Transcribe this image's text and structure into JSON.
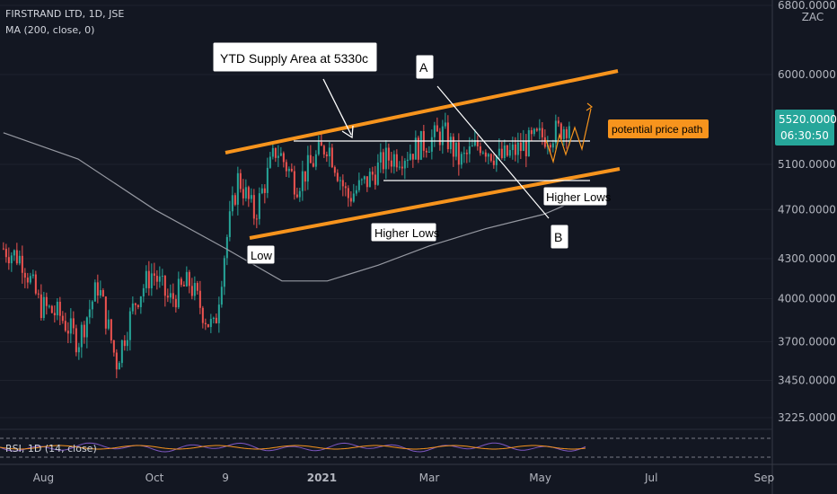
{
  "header": {
    "symbol_line": "FIRSTRAND LTD, 1D, JSE",
    "ma_line": "MA (200, close, 0)",
    "currency": "ZAC"
  },
  "price_tag": {
    "price": "5520.0000",
    "countdown": "06:30:50"
  },
  "annotations": {
    "supply_label": "YTD Supply Area at 5330c",
    "point_a": "A",
    "point_b": "B",
    "low": "Low",
    "higher_lows_1": "Higher Lows",
    "higher_lows_2": "Higher Lows",
    "path_label": "potential price path"
  },
  "rsi": {
    "label": "RSI, 1D (14, close)"
  },
  "colors": {
    "background": "#131722",
    "up": "#26a69a",
    "down": "#ef5350",
    "channel": "#f7941d",
    "ma": "#9598a1",
    "price_tag": "#26a69a",
    "path_label_bg": "#f7941d"
  },
  "chart_data": {
    "type": "candlestick",
    "title": "FIRSTRAND LTD, 1D, JSE",
    "y_ticks": [
      "6800.0000",
      "6000.0000",
      "5100.0000",
      "4700.0000",
      "4300.0000",
      "4000.0000",
      "3700.0000",
      "3450.0000",
      "3225.0000"
    ],
    "x_ticks": [
      "Aug",
      "Oct",
      "9",
      "2021",
      "Mar",
      "May",
      "Jul",
      "Sep"
    ],
    "log_scale": true,
    "supply_level": 5330,
    "series": [
      {
        "name": "price (approx. daily closes)",
        "x": [
          "2020-07-10",
          "2020-07-20",
          "2020-07-30",
          "2020-08-10",
          "2020-08-20",
          "2020-08-31",
          "2020-09-10",
          "2020-09-21",
          "2020-09-30",
          "2020-10-09",
          "2020-10-20",
          "2020-10-30",
          "2020-11-03",
          "2020-11-09",
          "2020-11-16",
          "2020-11-25",
          "2020-12-07",
          "2020-12-18",
          "2021-01-04",
          "2021-01-15",
          "2021-01-26",
          "2021-02-05",
          "2021-02-16",
          "2021-02-26",
          "2021-03-09",
          "2021-03-18",
          "2021-03-29",
          "2021-04-09",
          "2021-04-20",
          "2021-04-30",
          "2021-05-11",
          "2021-05-18"
        ],
        "values": [
          4380,
          4300,
          3950,
          3880,
          3700,
          4100,
          3560,
          4000,
          4200,
          3980,
          4120,
          3840,
          3780,
          4400,
          4980,
          4650,
          5250,
          4920,
          5300,
          4800,
          4950,
          5150,
          5200,
          5300,
          5400,
          5120,
          5300,
          5150,
          5250,
          5350,
          5420,
          5520
        ]
      },
      {
        "name": "MA (200, close, 0)",
        "x": [
          "2020-07-10",
          "2020-08-20",
          "2020-10-01",
          "2020-11-09",
          "2020-12-10",
          "2021-01-04",
          "2021-02-01",
          "2021-03-01",
          "2021-04-01",
          "2021-05-03",
          "2021-05-18"
        ],
        "values": [
          5400,
          5150,
          4700,
          4380,
          4130,
          4130,
          4250,
          4400,
          4540,
          4660,
          4760
        ]
      }
    ]
  }
}
